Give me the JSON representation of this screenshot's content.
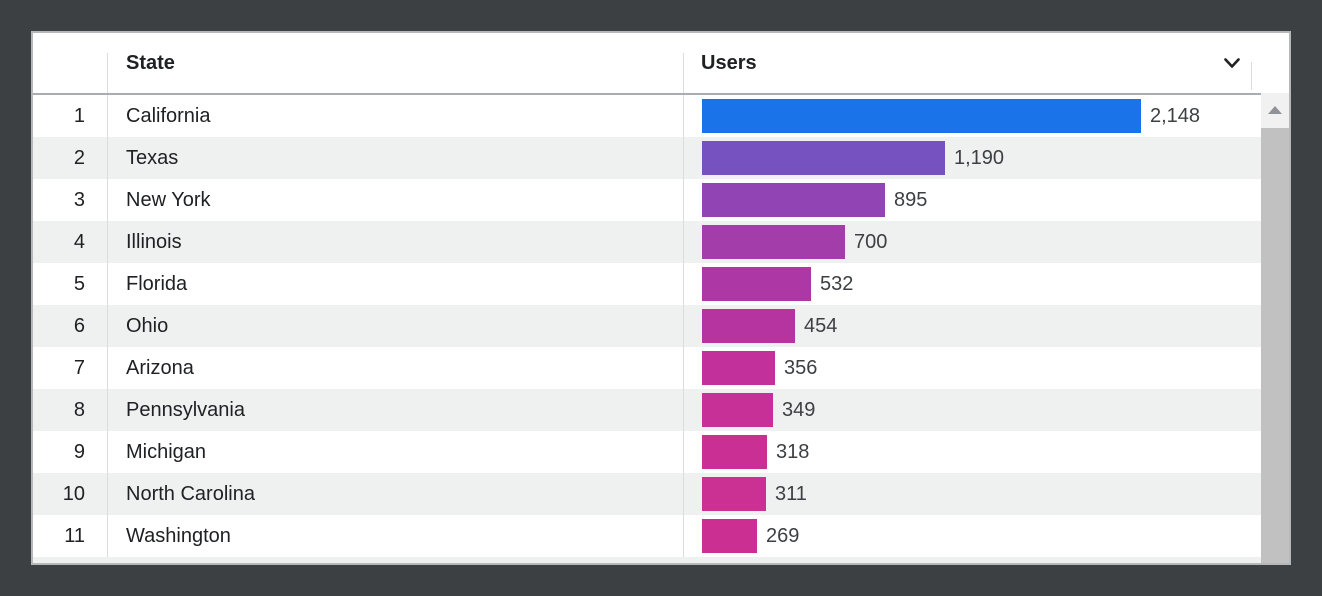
{
  "header": {
    "rank_label": "",
    "state_label": "State",
    "users_label": "Users",
    "sort_icon": "chevron-down"
  },
  "rows": [
    {
      "rank": "1",
      "state": "California",
      "users_display": "2,148",
      "users_value": 2148
    },
    {
      "rank": "2",
      "state": "Texas",
      "users_display": "1,190",
      "users_value": 1190
    },
    {
      "rank": "3",
      "state": "New York",
      "users_display": "895",
      "users_value": 895
    },
    {
      "rank": "4",
      "state": "Illinois",
      "users_display": "700",
      "users_value": 700
    },
    {
      "rank": "5",
      "state": "Florida",
      "users_display": "532",
      "users_value": 532
    },
    {
      "rank": "6",
      "state": "Ohio",
      "users_display": "454",
      "users_value": 454
    },
    {
      "rank": "7",
      "state": "Arizona",
      "users_display": "356",
      "users_value": 356
    },
    {
      "rank": "8",
      "state": "Pennsylvania",
      "users_display": "349",
      "users_value": 349
    },
    {
      "rank": "9",
      "state": "Michigan",
      "users_display": "318",
      "users_value": 318
    },
    {
      "rank": "10",
      "state": "North Carolina",
      "users_display": "311",
      "users_value": 311
    },
    {
      "rank": "11",
      "state": "Washington",
      "users_display": "269",
      "users_value": 269
    }
  ],
  "scrollbar": {
    "up_icon": "triangle-up"
  },
  "colors": {
    "frame": "#3c4043",
    "card_border": "#b4b8bb",
    "row_alt": "#eff1f1",
    "divider": "#dadce0",
    "header_border": "#a8adb2",
    "text_primary": "#202124",
    "text_value": "#3c4043",
    "scroll_track": "#f1f1f1",
    "scroll_thumb": "#c1c1c1",
    "bar_colors": [
      "#1a73e8",
      "#7652c1",
      "#9145b5",
      "#a23daa",
      "#ad37a4",
      "#b634a0",
      "#c2319b",
      "#c73197",
      "#ca3094",
      "#cb3093",
      "#cc2f92"
    ]
  },
  "chart_data": {
    "type": "bar",
    "orientation": "horizontal",
    "title": "",
    "columns": [
      "State",
      "Users"
    ],
    "categories": [
      "California",
      "Texas",
      "New York",
      "Illinois",
      "Florida",
      "Ohio",
      "Arizona",
      "Pennsylvania",
      "Michigan",
      "North Carolina",
      "Washington"
    ],
    "values": [
      2148,
      1190,
      895,
      700,
      532,
      454,
      356,
      349,
      318,
      311,
      269
    ],
    "value_labels": [
      "2,148",
      "1,190",
      "895",
      "700",
      "532",
      "454",
      "356",
      "349",
      "318",
      "311",
      "269"
    ],
    "ranks": [
      1,
      2,
      3,
      4,
      5,
      6,
      7,
      8,
      9,
      10,
      11
    ],
    "xlabel": "Users",
    "ylabel": "State",
    "xlim": [
      0,
      2148
    ],
    "grid": false,
    "legend": false,
    "bar_palette": [
      "#1a73e8",
      "#7652c1",
      "#9145b5",
      "#a23daa",
      "#ad37a4",
      "#b634a0",
      "#c2319b",
      "#c73197",
      "#ca3094",
      "#cb3093",
      "#cc2f92"
    ]
  }
}
